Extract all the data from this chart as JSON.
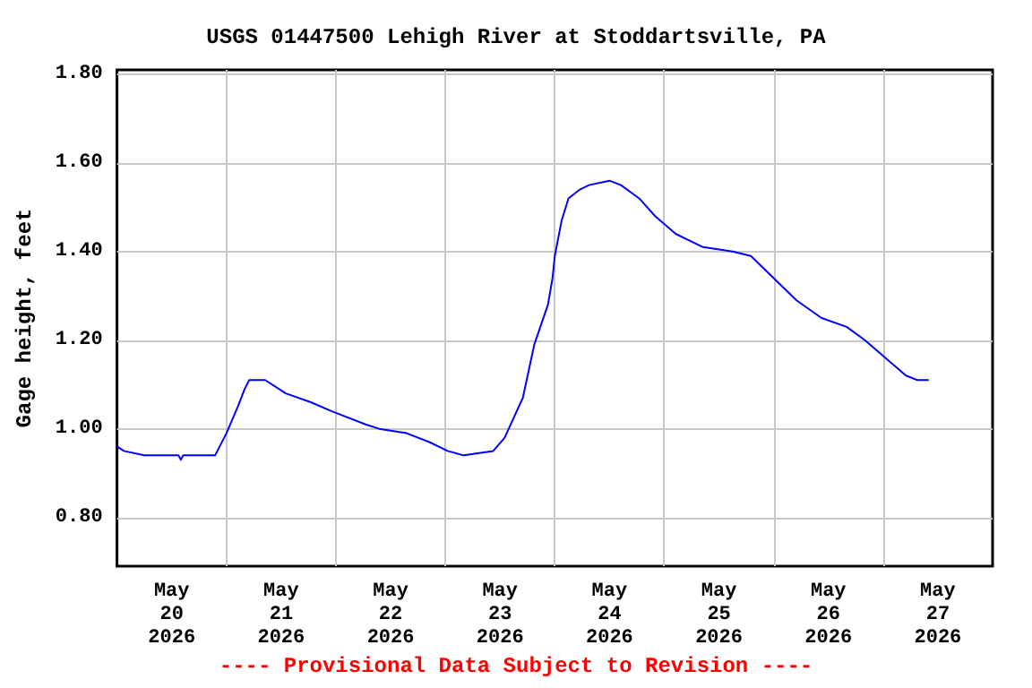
{
  "chart_data": {
    "type": "line",
    "title": "USGS 01447500 Lehigh River at Stoddartsville, PA",
    "ylabel": "Gage height, feet",
    "annotations": [
      "---- Provisional Data Subject to Revision ----"
    ],
    "x": [
      "2026-05-20T00:00",
      "2026-05-20T01:30",
      "2026-05-20T06:00",
      "2026-05-20T13:30",
      "2026-05-20T14:00",
      "2026-05-20T14:30",
      "2026-05-20T21:30",
      "2026-05-21T00:00",
      "2026-05-21T02:30",
      "2026-05-21T04:00",
      "2026-05-21T05:00",
      "2026-05-21T08:30",
      "2026-05-21T13:00",
      "2026-05-21T18:30",
      "2026-05-21T23:00",
      "2026-05-22T06:30",
      "2026-05-22T09:30",
      "2026-05-22T15:30",
      "2026-05-22T20:30",
      "2026-05-23T00:30",
      "2026-05-23T04:00",
      "2026-05-23T10:30",
      "2026-05-23T13:00",
      "2026-05-23T17:00",
      "2026-05-23T19:30",
      "2026-05-23T22:30",
      "2026-05-23T23:30",
      "2026-05-24T00:00",
      "2026-05-24T01:30",
      "2026-05-24T03:00",
      "2026-05-24T05:30",
      "2026-05-24T07:30",
      "2026-05-24T12:00",
      "2026-05-24T14:30",
      "2026-05-24T18:30",
      "2026-05-24T22:00",
      "2026-05-25T02:30",
      "2026-05-25T08:30",
      "2026-05-25T15:00",
      "2026-05-25T19:00",
      "2026-05-26T00:00",
      "2026-05-26T05:00",
      "2026-05-26T10:30",
      "2026-05-26T16:00",
      "2026-05-26T20:00",
      "2026-05-27T00:30",
      "2026-05-27T05:00",
      "2026-05-27T07:30",
      "2026-05-27T10:00"
    ],
    "series": [
      {
        "color": "#0000ff",
        "values": [
          0.96,
          0.95,
          0.94,
          0.94,
          0.93,
          0.94,
          0.94,
          0.99,
          1.05,
          1.09,
          1.11,
          1.11,
          1.08,
          1.06,
          1.04,
          1.01,
          1.0,
          0.99,
          0.97,
          0.95,
          0.94,
          0.95,
          0.98,
          1.07,
          1.19,
          1.28,
          1.34,
          1.39,
          1.47,
          1.52,
          1.54,
          1.55,
          1.56,
          1.55,
          1.52,
          1.48,
          1.44,
          1.41,
          1.4,
          1.39,
          1.34,
          1.29,
          1.25,
          1.23,
          1.2,
          1.16,
          1.12,
          1.11,
          1.11
        ]
      }
    ],
    "xlim": [
      "2026-05-20T00:00",
      "2026-05-28T00:00"
    ],
    "xticks": [
      {
        "value": "2026-05-20T12:00",
        "label": "May\n20\n2026"
      },
      {
        "value": "2026-05-21T12:00",
        "label": "May\n21\n2026"
      },
      {
        "value": "2026-05-22T12:00",
        "label": "May\n22\n2026"
      },
      {
        "value": "2026-05-23T12:00",
        "label": "May\n23\n2026"
      },
      {
        "value": "2026-05-24T12:00",
        "label": "May\n24\n2026"
      },
      {
        "value": "2026-05-25T12:00",
        "label": "May\n25\n2026"
      },
      {
        "value": "2026-05-26T12:00",
        "label": "May\n26\n2026"
      },
      {
        "value": "2026-05-27T12:00",
        "label": "May\n27\n2026"
      },
      {
        "value": "2026-05-21T00:00",
        "label": null
      },
      {
        "value": "2026-05-22T00:00",
        "label": null
      },
      {
        "value": "2026-05-23T00:00",
        "label": null
      },
      {
        "value": "2026-05-24T00:00",
        "label": null
      },
      {
        "value": "2026-05-25T00:00",
        "label": null
      },
      {
        "value": "2026-05-26T00:00",
        "label": null
      },
      {
        "value": "2026-05-27T00:00",
        "label": null
      }
    ],
    "ylim": [
      0.69,
      1.81
    ],
    "yticks": [
      {
        "value": 0.8,
        "label": "0.80"
      },
      {
        "value": 1.0,
        "label": "1.00"
      },
      {
        "value": 1.2,
        "label": "1.20"
      },
      {
        "value": 1.4,
        "label": "1.40"
      },
      {
        "value": 1.6,
        "label": "1.60"
      },
      {
        "value": 1.8,
        "label": "1.80"
      }
    ],
    "grid": true,
    "marker": "none",
    "line_style": "solid"
  }
}
